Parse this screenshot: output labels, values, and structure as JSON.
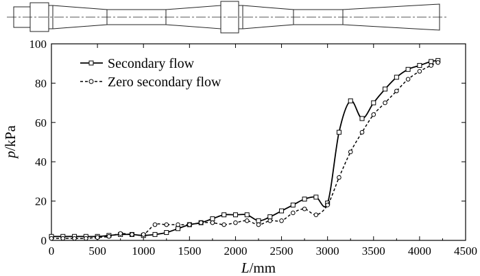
{
  "chart_data": {
    "type": "line",
    "title": "",
    "xlabel_italic": "L",
    "xlabel_unit": "/mm",
    "ylabel_italic": "p",
    "ylabel_unit": "/kPa",
    "xlim": [
      0,
      4500
    ],
    "ylim": [
      0,
      100
    ],
    "x_ticks": [
      "0",
      "500",
      "1000",
      "1500",
      "2000",
      "2500",
      "3000",
      "3500",
      "4000",
      "4500"
    ],
    "y_ticks": [
      "0",
      "20",
      "40",
      "60",
      "80",
      "100"
    ],
    "legend_position": "top-left",
    "grid": false,
    "series": [
      {
        "name": "Secondary flow",
        "line_style": "solid",
        "marker": "square",
        "x": [
          0,
          125,
          250,
          375,
          500,
          625,
          750,
          875,
          1000,
          1125,
          1250,
          1375,
          1500,
          1625,
          1750,
          1875,
          2000,
          2125,
          2250,
          2375,
          2500,
          2625,
          2750,
          2875,
          3000,
          3125,
          3250,
          3375,
          3500,
          3625,
          3750,
          3875,
          4000,
          4125,
          4200
        ],
        "y": [
          2,
          2,
          2,
          2,
          2,
          2.5,
          3,
          3,
          2.5,
          3,
          4,
          6,
          8,
          9,
          11,
          13,
          13,
          13,
          10,
          12,
          15,
          18,
          21,
          22,
          19,
          55,
          71,
          62,
          70,
          77,
          83,
          87,
          89,
          91,
          91.5
        ]
      },
      {
        "name": "Zero secondary flow",
        "line_style": "dashed",
        "marker": "circle",
        "x": [
          0,
          125,
          250,
          375,
          500,
          625,
          750,
          875,
          1000,
          1125,
          1250,
          1375,
          1500,
          1625,
          1750,
          1875,
          2000,
          2125,
          2250,
          2375,
          2500,
          2625,
          2750,
          2875,
          3000,
          3125,
          3250,
          3375,
          3500,
          3625,
          3750,
          3875,
          4000,
          4125,
          4200
        ],
        "y": [
          1,
          1,
          1,
          1,
          1.5,
          2,
          3.5,
          3,
          3,
          8,
          8,
          8,
          8,
          9,
          9,
          8,
          9,
          10,
          8,
          10,
          10,
          14,
          16,
          13,
          18,
          32,
          45,
          55,
          64,
          70,
          76,
          82,
          86,
          89,
          90.5
        ]
      }
    ]
  },
  "schematic": {
    "description_icon": "channel-geometry-schematic"
  }
}
